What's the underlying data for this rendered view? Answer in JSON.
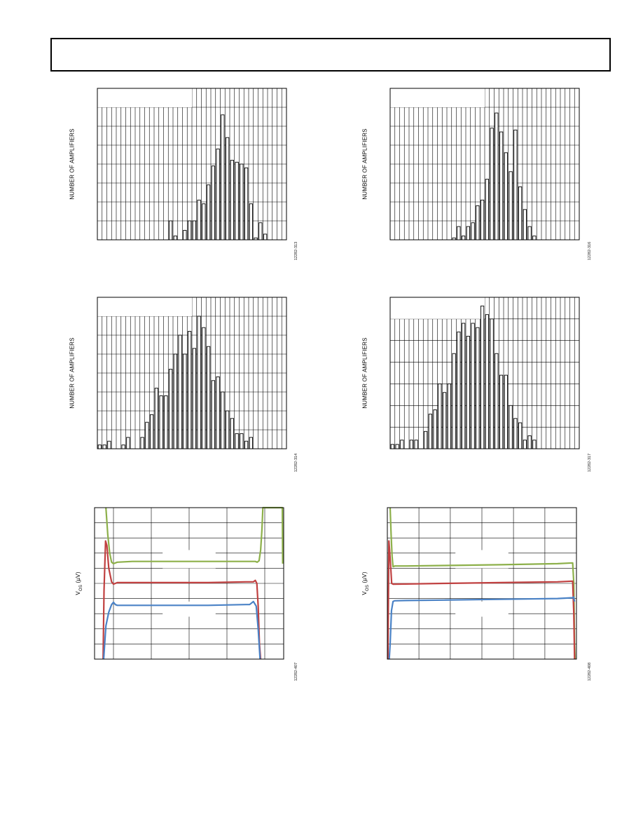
{
  "header": {
    "title": ""
  },
  "charts": [
    {
      "id": "hist-1",
      "fig_id": "12282-313",
      "ylabel": "NUMBER OF AMPLIFIERS",
      "chart_data": {
        "type": "bar",
        "title": "",
        "xlabel": "",
        "ylabel": "NUMBER OF AMPLIFIERS",
        "ylim": [
          0,
          8
        ],
        "grid": true,
        "n_bins": 40,
        "values": [
          0,
          0,
          0,
          0,
          0,
          0,
          0,
          0,
          0,
          0,
          0,
          0,
          0,
          0,
          0,
          1,
          0.2,
          0,
          0.5,
          1,
          1,
          2.1,
          1.9,
          2.9,
          3.9,
          4.8,
          6.6,
          5.4,
          4.2,
          4.1,
          4,
          3.8,
          1.9,
          0.1,
          0.9,
          0.3,
          0,
          0,
          0,
          0
        ]
      }
    },
    {
      "id": "hist-2",
      "fig_id": "12282-316",
      "ylabel": "NUMBER OF AMPLIFIERS",
      "chart_data": {
        "type": "bar",
        "title": "",
        "xlabel": "",
        "ylabel": "NUMBER OF AMPLIFIERS",
        "ylim": [
          0,
          8
        ],
        "grid": true,
        "n_bins": 40,
        "values": [
          0,
          0,
          0,
          0,
          0,
          0,
          0,
          0,
          0,
          0,
          0,
          0,
          0,
          0.1,
          0.7,
          0.2,
          0.7,
          0.9,
          1.8,
          2.1,
          3.2,
          5.9,
          6.7,
          5.7,
          4.6,
          3.6,
          5.8,
          2.8,
          1.6,
          0.7,
          0.2,
          0,
          0,
          0,
          0,
          0,
          0,
          0,
          0,
          0
        ]
      }
    },
    {
      "id": "hist-3",
      "fig_id": "12282-314",
      "ylabel": "NUMBER OF AMPLIFIERS",
      "chart_data": {
        "type": "bar",
        "title": "",
        "xlabel": "",
        "ylabel": "NUMBER OF AMPLIFIERS",
        "ylim": [
          0,
          8
        ],
        "grid": true,
        "n_bins": 40,
        "values": [
          0.2,
          0.2,
          0.4,
          0,
          0,
          0.2,
          0.6,
          0,
          0,
          0.6,
          1.4,
          1.8,
          3.2,
          2.8,
          2.8,
          4.2,
          5,
          6,
          5,
          6.2,
          5.3,
          7,
          6.4,
          5.4,
          3.6,
          3.8,
          3,
          2,
          1.6,
          0.8,
          0.8,
          0.4,
          0.6,
          0,
          0,
          0,
          0,
          0,
          0,
          0
        ]
      }
    },
    {
      "id": "hist-4",
      "fig_id": "12282-317",
      "ylabel": "NUMBER OF AMPLIFIERS",
      "chart_data": {
        "type": "bar",
        "title": "",
        "xlabel": "",
        "ylabel": "NUMBER OF AMPLIFIERS",
        "ylim": [
          0,
          7
        ],
        "grid": true,
        "n_bins": 40,
        "values": [
          0.2,
          0.2,
          0.4,
          0,
          0.4,
          0.4,
          0,
          0.8,
          1.6,
          1.8,
          3,
          2.6,
          3,
          4.4,
          5.4,
          5.8,
          5.2,
          5.8,
          5.6,
          6.6,
          6.2,
          6,
          4.4,
          3.4,
          3.4,
          2,
          1.4,
          1.2,
          0.4,
          0.6,
          0.4,
          0,
          0,
          0,
          0,
          0,
          0,
          0,
          0,
          0
        ]
      }
    },
    {
      "id": "vos-1",
      "fig_id": "12282-407",
      "ylabel_main": "V",
      "ylabel_sub": "OS",
      "ylabel_unit": " (µV)",
      "chart_data": {
        "type": "line",
        "title": "",
        "xlabel": "",
        "xlim": [
          0,
          100
        ],
        "ylim": [
          0,
          100
        ],
        "grid": true,
        "series": [
          {
            "color": "#8db04a",
            "x": [
              6,
              7,
              8,
              9,
              10,
              12,
              20,
              40,
              60,
              80,
              85,
              86,
              87,
              87.8,
              88.5,
              89,
              99.3,
              99.5
            ],
            "y": [
              100,
              82,
              70,
              64,
              63,
              64,
              64.5,
              64.5,
              64.5,
              64.5,
              64.5,
              64,
              65,
              72,
              85,
              100,
              100,
              63
            ]
          },
          {
            "color": "#c04040",
            "x": [
              4.5,
              5,
              5.8,
              6.5,
              7.5,
              9,
              10,
              12,
              20,
              40,
              60,
              80,
              84,
              85,
              85.8,
              86.5,
              87.2,
              87.8
            ],
            "y": [
              0,
              45,
              78,
              75,
              60,
              51,
              49.5,
              50.5,
              50.5,
              50.5,
              50.5,
              51,
              51,
              52,
              50,
              35,
              10,
              0
            ]
          },
          {
            "color": "#4a82c6",
            "x": [
              4.8,
              6,
              7.5,
              9,
              10,
              11,
              12,
              20,
              40,
              60,
              80,
              82,
              84,
              85.5,
              86.5,
              87.5
            ],
            "y": [
              0,
              22,
              31,
              36,
              37.5,
              36,
              35.5,
              35.5,
              35.5,
              35.5,
              36,
              36,
              38,
              35,
              20,
              0
            ]
          }
        ]
      }
    },
    {
      "id": "vos-2",
      "fig_id": "12282-408",
      "ylabel_main": "V",
      "ylabel_sub": "OS",
      "ylabel_unit": " (µV)",
      "chart_data": {
        "type": "line",
        "title": "",
        "xlabel": "",
        "xlim": [
          0,
          100
        ],
        "ylim": [
          0,
          100
        ],
        "grid": true,
        "series": [
          {
            "color": "#8db04a",
            "x": [
              1.5,
              2,
              2.5,
              3,
              4,
              10,
              30,
              60,
              90,
              98,
              98.6,
              99,
              99.3
            ],
            "y": [
              100,
              82,
              68,
              61,
              61.5,
              61.5,
              61.8,
              62.3,
              63,
              63.5,
              50,
              10,
              0
            ]
          },
          {
            "color": "#c04040",
            "x": [
              0.3,
              0.8,
              1.2,
              1.8,
              2.3,
              3,
              10,
              30,
              60,
              90,
              98,
              98.6,
              99
            ],
            "y": [
              0,
              78,
              72,
              60,
              50,
              49.5,
              49.6,
              50,
              50.5,
              51,
              51.5,
              30,
              0
            ]
          },
          {
            "color": "#4a82c6",
            "x": [
              1.0,
              1.5,
              2.2,
              3,
              3.8,
              10,
              30,
              60,
              90,
              98,
              98.5,
              99
            ],
            "y": [
              0,
              10,
              32,
              38,
              38.5,
              38.7,
              39,
              39.5,
              40,
              40.5,
              41,
              38
            ]
          }
        ]
      }
    }
  ]
}
